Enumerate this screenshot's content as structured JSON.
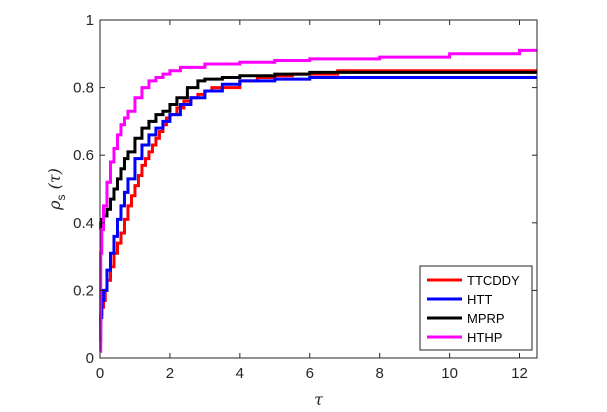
{
  "chart_data": {
    "type": "line",
    "title": "",
    "xlabel": "τ",
    "ylabel": {
      "main": "ρ",
      "sub": "s",
      "arg": " (τ)"
    },
    "xlim": [
      0,
      12.5
    ],
    "ylim": [
      0,
      1
    ],
    "xticks": [
      "0",
      "2",
      "4",
      "6",
      "8",
      "10",
      "12"
    ],
    "yticks": [
      "0",
      "0.2",
      "0.4",
      "0.6",
      "0.8",
      "1"
    ],
    "grid": false,
    "legend_position": "bottom-right",
    "series": [
      {
        "name": "TTCDDY",
        "color": "#ff0000",
        "x": [
          0,
          0.02,
          0.05,
          0.1,
          0.15,
          0.2,
          0.3,
          0.4,
          0.5,
          0.6,
          0.7,
          0.8,
          0.9,
          1.0,
          1.1,
          1.2,
          1.3,
          1.4,
          1.5,
          1.6,
          1.7,
          1.8,
          1.9,
          2.0,
          2.2,
          2.4,
          2.6,
          2.8,
          3.0,
          3.2,
          3.5,
          4.0,
          4.5,
          5.0,
          5.5,
          6.0,
          6.8,
          7.2,
          12.5
        ],
        "y": [
          0.1,
          0.13,
          0.15,
          0.17,
          0.2,
          0.23,
          0.27,
          0.31,
          0.34,
          0.37,
          0.41,
          0.45,
          0.48,
          0.51,
          0.54,
          0.57,
          0.59,
          0.61,
          0.63,
          0.65,
          0.67,
          0.69,
          0.71,
          0.72,
          0.74,
          0.76,
          0.77,
          0.78,
          0.79,
          0.8,
          0.8,
          0.82,
          0.83,
          0.835,
          0.84,
          0.84,
          0.85,
          0.85,
          0.85
        ]
      },
      {
        "name": "HTT",
        "color": "#0000ff",
        "x": [
          0,
          0.02,
          0.05,
          0.1,
          0.2,
          0.3,
          0.4,
          0.5,
          0.6,
          0.7,
          0.8,
          1.0,
          1.2,
          1.4,
          1.6,
          1.8,
          2.0,
          2.3,
          2.6,
          3.0,
          3.5,
          4.0,
          5.0,
          6.0,
          7.0,
          12.5
        ],
        "y": [
          0.05,
          0.12,
          0.17,
          0.2,
          0.26,
          0.31,
          0.36,
          0.41,
          0.45,
          0.49,
          0.53,
          0.59,
          0.63,
          0.66,
          0.68,
          0.7,
          0.72,
          0.75,
          0.77,
          0.79,
          0.81,
          0.82,
          0.825,
          0.83,
          0.83,
          0.83
        ]
      },
      {
        "name": "MPRP",
        "color": "#000000",
        "x": [
          0,
          0.02,
          0.05,
          0.1,
          0.2,
          0.3,
          0.4,
          0.5,
          0.6,
          0.7,
          0.8,
          1.0,
          1.2,
          1.4,
          1.6,
          1.8,
          2.0,
          2.2,
          2.5,
          2.8,
          3.0,
          3.5,
          4.0,
          5.0,
          6.0,
          12.5
        ],
        "y": [
          0.38,
          0.4,
          0.41,
          0.42,
          0.44,
          0.47,
          0.5,
          0.53,
          0.56,
          0.59,
          0.61,
          0.65,
          0.68,
          0.7,
          0.72,
          0.73,
          0.75,
          0.77,
          0.8,
          0.82,
          0.825,
          0.83,
          0.835,
          0.84,
          0.845,
          0.845
        ]
      },
      {
        "name": "HTHP",
        "color": "#ff00ff",
        "x": [
          0,
          0.02,
          0.05,
          0.1,
          0.2,
          0.3,
          0.4,
          0.5,
          0.6,
          0.7,
          0.8,
          1.0,
          1.2,
          1.4,
          1.6,
          1.8,
          2.0,
          2.3,
          2.6,
          3.0,
          4.0,
          5.0,
          6.0,
          8.0,
          10.0,
          12.0,
          12.5
        ],
        "y": [
          0.02,
          0.31,
          0.38,
          0.45,
          0.52,
          0.58,
          0.62,
          0.66,
          0.69,
          0.71,
          0.73,
          0.77,
          0.8,
          0.82,
          0.83,
          0.84,
          0.85,
          0.86,
          0.86,
          0.87,
          0.875,
          0.88,
          0.885,
          0.89,
          0.9,
          0.91,
          0.91
        ]
      }
    ]
  }
}
